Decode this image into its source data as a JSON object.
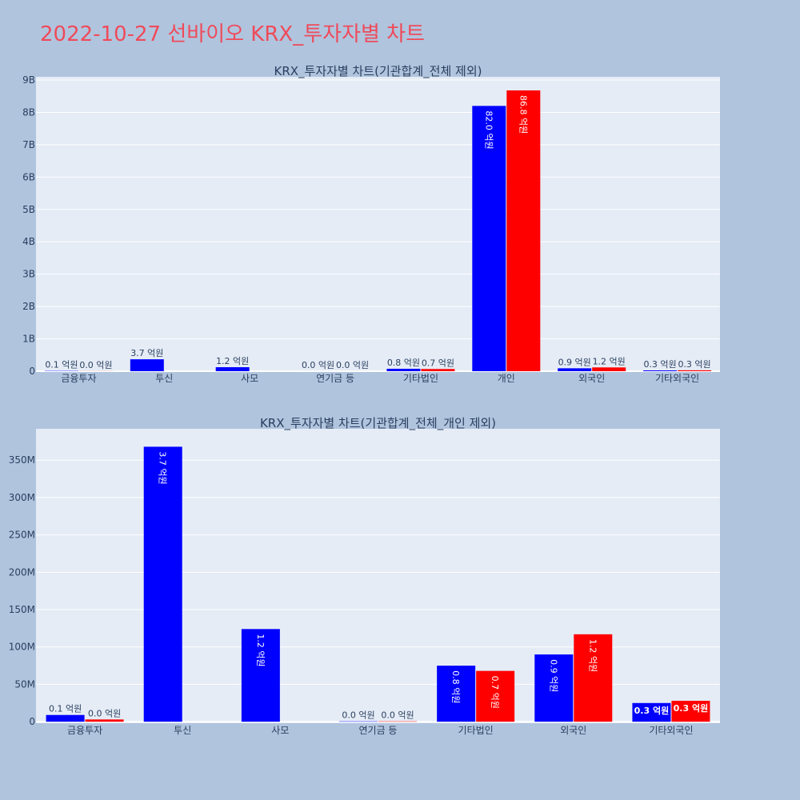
{
  "page": {
    "title": "2022-10-27 선바이오 KRX_투자자별 차트",
    "colors": {
      "buy": "#0000ff",
      "sell": "#ff0000",
      "plot_bg": "#e5ecf6",
      "page_bg": "#b0c4de",
      "title": "#ef4b5a"
    }
  },
  "chart_data": [
    {
      "type": "bar",
      "title": "KRX_투자자별 차트(기관합계_전체 제외)",
      "categories": [
        "금융투자",
        "투신",
        "사모",
        "연기금 등",
        "기타법인",
        "개인",
        "외국인",
        "기타외국인"
      ],
      "series": [
        {
          "color": "#0000ff",
          "values": [
            9000000,
            368000000,
            124000000,
            500000,
            75000000,
            8200000000,
            90000000,
            25000000
          ],
          "labels": [
            "0.1 억원",
            "3.7 억원",
            "1.2 억원",
            "0.0 억원",
            "0.8 억원",
            "82.0 억원",
            "0.9 억원",
            "0.3 억원"
          ]
        },
        {
          "color": "#ff0000",
          "values": [
            3000000,
            0,
            0,
            500000,
            68000000,
            8680000000,
            117000000,
            28000000
          ],
          "labels": [
            "0.0 억원",
            "",
            "",
            "0.0 억원",
            "0.7 억원",
            "86.8 억원",
            "1.2 억원",
            "0.3 억원"
          ]
        }
      ],
      "ylim": [
        0,
        9100000000
      ],
      "yticks": [
        0,
        1000000000,
        2000000000,
        3000000000,
        4000000000,
        5000000000,
        6000000000,
        7000000000,
        8000000000,
        9000000000
      ],
      "ytick_labels": [
        "0",
        "1B",
        "2B",
        "3B",
        "4B",
        "5B",
        "6B",
        "7B",
        "8B",
        "9B"
      ],
      "grid": true
    },
    {
      "type": "bar",
      "title": "KRX_투자자별 차트(기관합계_전체_개인 제외)",
      "categories": [
        "금융투자",
        "투신",
        "사모",
        "연기금 등",
        "기타법인",
        "외국인",
        "기타외국인"
      ],
      "series": [
        {
          "color": "#0000ff",
          "values": [
            9000000,
            368000000,
            124000000,
            500000,
            75000000,
            90000000,
            25000000
          ],
          "labels": [
            "0.1 억원",
            "3.7 억원",
            "1.2 억원",
            "0.0 억원",
            "0.8 억원",
            "0.9 억원",
            "0.3 억원"
          ]
        },
        {
          "color": "#ff0000",
          "values": [
            3000000,
            0,
            0,
            500000,
            68000000,
            117000000,
            28000000
          ],
          "labels": [
            "0.0 억원",
            "",
            "",
            "0.0 억원",
            "0.7 억원",
            "1.2 억원",
            "0.3 억원"
          ]
        }
      ],
      "ylim": [
        -2000000,
        392000000
      ],
      "yticks": [
        0,
        50000000,
        100000000,
        150000000,
        200000000,
        250000000,
        300000000,
        350000000
      ],
      "ytick_labels": [
        "0",
        "50M",
        "100M",
        "150M",
        "200M",
        "250M",
        "300M",
        "350M"
      ],
      "grid": true
    }
  ]
}
